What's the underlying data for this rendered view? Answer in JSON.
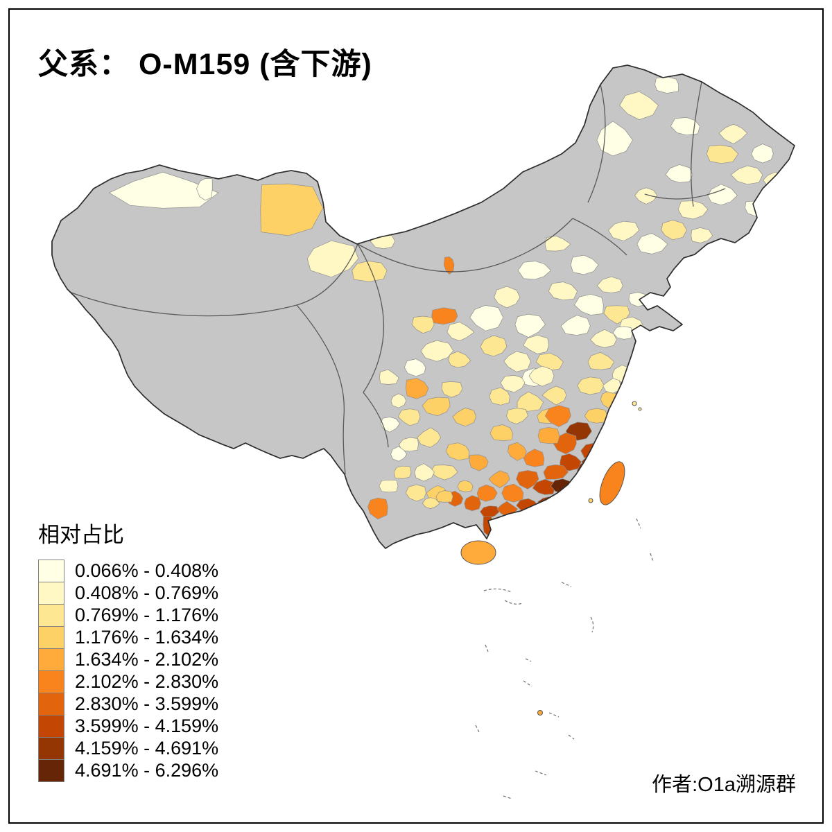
{
  "title": "父系： O-M159 (含下游)",
  "legend": {
    "title": "相对占比",
    "items": [
      {
        "label": "0.066% - 0.408%",
        "color": "#FFFFE5"
      },
      {
        "label": "0.408% - 0.769%",
        "color": "#FFF8C5"
      },
      {
        "label": "0.769% - 1.176%",
        "color": "#FEE793"
      },
      {
        "label": "1.176% - 1.634%",
        "color": "#FED167"
      },
      {
        "label": "1.634% - 2.102%",
        "color": "#FEAB3B"
      },
      {
        "label": "2.102% - 2.830%",
        "color": "#F9841E"
      },
      {
        "label": "2.830% - 3.599%",
        "color": "#E2640D"
      },
      {
        "label": "3.599% - 4.159%",
        "color": "#C34702"
      },
      {
        "label": "4.159% - 4.691%",
        "color": "#943504"
      },
      {
        "label": "4.691% - 6.296%",
        "color": "#662506"
      }
    ]
  },
  "map": {
    "no_data_color": "#C6C6C6",
    "province_border_color": "#4D4D4D",
    "outline_color": "#333333"
  },
  "attribution": "作者:O1a溯源群"
}
